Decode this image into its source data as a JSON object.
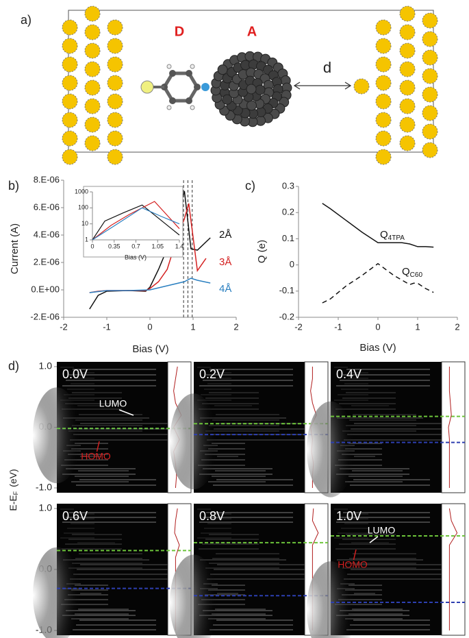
{
  "panel_labels": [
    "a)",
    "b)",
    "c)",
    "d)"
  ],
  "diagram": {
    "donor": "D",
    "acceptor": "A",
    "distance": "d"
  },
  "chart_data": [
    {
      "type": "line",
      "xlabel": "Bias (V)",
      "ylabel": "Current (A)",
      "xlim": [
        -2,
        2
      ],
      "xticks": [
        -2,
        -1,
        0,
        1,
        2
      ],
      "ylim": [
        -2e-06,
        8e-06
      ],
      "yticks": [
        {
          "value": 8e-06,
          "label": "8.E-06"
        },
        {
          "value": 6e-06,
          "label": "6.E-06"
        },
        {
          "value": 4e-06,
          "label": "4.E-06"
        },
        {
          "value": 2e-06,
          "label": "2.E-06"
        },
        {
          "value": 0,
          "label": "0.E+00"
        },
        {
          "value": -2e-06,
          "label": "-2.E-06"
        }
      ],
      "vlines": [
        0.78,
        0.88,
        0.98
      ],
      "series": [
        {
          "name": "2Å",
          "color": "#111111",
          "x": [
            -1.4,
            -1.2,
            -1.0,
            -0.5,
            -0.1,
            0,
            0.2,
            0.4,
            0.6,
            0.8,
            0.95,
            1.1,
            1.4
          ],
          "values": [
            -1.4e-06,
            -4e-07,
            -1e-07,
            -5e-08,
            -1e-07,
            2e-07,
            1.5e-06,
            3e-06,
            5e-06,
            7.2e-06,
            3e-06,
            2.9e-06,
            3.8e-06
          ]
        },
        {
          "name": "3Å",
          "color": "#d42020",
          "x": [
            -1.4,
            -1.2,
            -1.0,
            -0.5,
            -0.1,
            0,
            0.2,
            0.4,
            0.6,
            0.8,
            0.9,
            1.1,
            1.3
          ],
          "values": [
            -2e-07,
            -1e-07,
            -5e-08,
            -5e-08,
            -5e-08,
            1e-07,
            6e-07,
            1.5e-06,
            3.5e-06,
            5.2e-06,
            6.3e-06,
            1.4e-06,
            2.3e-06
          ]
        },
        {
          "name": "4Å",
          "color": "#2a7fc0",
          "x": [
            -1.4,
            -1.0,
            -0.5,
            0,
            0.4,
            0.8,
            0.95,
            1.1,
            1.4
          ],
          "values": [
            -2e-07,
            -5e-08,
            -5e-08,
            0,
            3e-07,
            6e-07,
            8.5e-07,
            7e-07,
            5e-07
          ]
        }
      ]
    },
    {
      "type": "line",
      "xlabel": "Bias (V)",
      "ylog": true,
      "xlim": [
        0,
        1.4
      ],
      "xticks": [
        0,
        0.35,
        0.7,
        1.05,
        1.4
      ],
      "ylim": [
        1,
        1000
      ],
      "yticks": [
        1,
        10,
        100,
        1000
      ],
      "series": [
        {
          "color": "#111111",
          "x": [
            0,
            0.2,
            0.5,
            0.8,
            1.4
          ],
          "values": [
            1,
            15,
            50,
            150,
            2
          ]
        },
        {
          "color": "#d42020",
          "x": [
            0,
            0.3,
            0.6,
            1.0,
            1.4
          ],
          "values": [
            1,
            8,
            40,
            250,
            5
          ]
        },
        {
          "color": "#2a7fc0",
          "x": [
            0,
            0.4,
            0.8,
            1.1,
            1.4
          ],
          "values": [
            1,
            10,
            100,
            30,
            10
          ]
        }
      ]
    },
    {
      "type": "line",
      "xlabel": "Bias (V)",
      "ylabel": "Q (e)",
      "xlim": [
        -2,
        2
      ],
      "xticks": [
        -2,
        -1,
        0,
        1,
        2
      ],
      "ylim": [
        -0.2,
        0.3
      ],
      "yticks": [
        0.3,
        0.2,
        0.1,
        0,
        -0.1,
        -0.2
      ],
      "series": [
        {
          "name": "Q",
          "name_sub": "4TPA",
          "color": "#111111",
          "dashed": false,
          "x": [
            -1.4,
            -1.2,
            -0.8,
            -0.4,
            0,
            0.2,
            0.4,
            0.6,
            0.8,
            1.0,
            1.2,
            1.4
          ],
          "values": [
            0.235,
            0.215,
            0.17,
            0.125,
            0.085,
            0.085,
            0.085,
            0.085,
            0.08,
            0.07,
            0.07,
            0.068
          ]
        },
        {
          "name": "Q",
          "name_sub": "C60",
          "color": "#111111",
          "dashed": true,
          "x": [
            -1.4,
            -1.2,
            -0.8,
            -0.4,
            0,
            0.4,
            0.8,
            0.9,
            1.0,
            1.2,
            1.4
          ],
          "values": [
            -0.145,
            -0.13,
            -0.08,
            -0.04,
            0.005,
            -0.04,
            -0.075,
            -0.07,
            -0.07,
            -0.09,
            -0.105
          ]
        }
      ]
    },
    {
      "type": "heatmap",
      "ylabel": "E-E",
      "ylabel_sub": "F",
      "ylabel_unit": "(eV)",
      "ylim": [
        -1,
        1
      ],
      "yticks": [
        {
          "value": 1,
          "label": "1.0"
        },
        {
          "value": 0,
          "label": "0.0"
        },
        {
          "value": -1,
          "label": "-1.0"
        }
      ],
      "left_color": "#6cc43a",
      "right_color": "#2d3fb0",
      "dos_color": "#b01c1c",
      "dos_energy": [
        -1,
        -0.8,
        -0.6,
        -0.4,
        -0.2,
        0,
        0.2,
        0.4,
        0.6,
        0.8,
        1
      ],
      "panels": [
        {
          "bias": "0.0V",
          "fermi_left": -0.02,
          "fermi_right": -0.02,
          "dos": [
            0.3,
            0.35,
            0.3,
            0.2,
            0.5,
            0.2,
            0.6,
            0.3,
            0.2,
            0.3,
            0.4
          ],
          "annotations": [
            {
              "text": "LUMO",
              "color": "#ffffff"
            },
            {
              "text": "HOMO",
              "color": "#d42020"
            }
          ]
        },
        {
          "bias": "0.2V",
          "fermi_left": 0.06,
          "fermi_right": -0.12,
          "dos": [
            0.3,
            0.3,
            0.35,
            0.25,
            0.3,
            0.2,
            0.5,
            0.3,
            0.2,
            0.3,
            0.3
          ],
          "annotations": []
        },
        {
          "bias": "0.4V",
          "fermi_left": 0.18,
          "fermi_right": -0.25,
          "dos": [
            0.3,
            0.3,
            0.3,
            0.3,
            0.3,
            0.25,
            0.4,
            0.35,
            0.3,
            0.3,
            0.3
          ],
          "annotations": []
        },
        {
          "bias": "0.6V",
          "fermi_left": 0.31,
          "fermi_right": -0.31,
          "dos": [
            0.3,
            0.3,
            0.3,
            0.3,
            0.3,
            0.3,
            0.3,
            0.5,
            0.25,
            0.3,
            0.4
          ],
          "annotations": []
        },
        {
          "bias": "0.8V",
          "fermi_left": 0.44,
          "fermi_right": -0.43,
          "dos": [
            0.3,
            0.3,
            0.3,
            0.3,
            0.3,
            0.3,
            0.3,
            0.3,
            0.6,
            0.3,
            0.35
          ],
          "annotations": []
        },
        {
          "bias": "1.0V",
          "fermi_left": 0.55,
          "fermi_right": -0.54,
          "dos": [
            0.3,
            0.3,
            0.3,
            0.3,
            0.3,
            0.3,
            0.3,
            0.3,
            0.7,
            0.4,
            0.3
          ],
          "annotations": [
            {
              "text": "LUMO",
              "color": "#ffffff"
            },
            {
              "text": "HOMO",
              "color": "#d42020"
            }
          ]
        }
      ]
    }
  ]
}
